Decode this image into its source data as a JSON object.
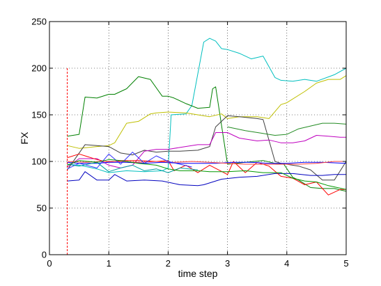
{
  "chart_data": {
    "type": "line",
    "xlabel": "time step",
    "ylabel": "FX",
    "xlim": [
      0,
      5
    ],
    "ylim": [
      0,
      250
    ],
    "xticks": [
      0,
      1,
      2,
      3,
      4,
      5
    ],
    "yticks": [
      0,
      50,
      100,
      150,
      200,
      250
    ],
    "grid": true,
    "marker_line": {
      "x": 0.3,
      "y_range": [
        0,
        200
      ],
      "color": "#ff0000"
    },
    "series": [
      {
        "color": "#00bfbf",
        "x": [
          0.3,
          0.5,
          0.8,
          1.0,
          1.3,
          1.6,
          1.9,
          2.0,
          2.05,
          2.3,
          2.4,
          2.6,
          2.7,
          2.8,
          2.9,
          3.0,
          3.2,
          3.4,
          3.6,
          3.8,
          3.9,
          4.1,
          4.3,
          4.5,
          4.8,
          5.0
        ],
        "y": [
          97,
          96,
          92,
          88,
          90,
          89,
          90,
          93,
          150,
          151,
          160,
          228,
          232,
          229,
          221,
          220,
          216,
          210,
          213,
          190,
          187,
          186,
          188,
          186,
          193,
          200
        ]
      },
      {
        "color": "#008000",
        "x": [
          0.3,
          0.5,
          0.6,
          0.8,
          1.0,
          1.1,
          1.3,
          1.5,
          1.7,
          1.9,
          2.0,
          2.1,
          2.3,
          2.5,
          2.7,
          2.75,
          2.8,
          3.0,
          3.3,
          3.6,
          3.8,
          3.95,
          4.1,
          4.2,
          4.4,
          4.6,
          4.8,
          5.0
        ],
        "y": [
          127,
          129,
          169,
          168,
          172,
          172,
          178,
          191,
          188,
          170,
          170,
          168,
          162,
          157,
          158,
          178,
          180,
          97,
          99,
          101,
          98,
          97,
          83,
          80,
          72,
          71,
          71,
          68
        ]
      },
      {
        "color": "#bfbf00",
        "x": [
          0.3,
          0.5,
          0.8,
          1.0,
          1.1,
          1.3,
          1.5,
          1.7,
          1.8,
          2.0,
          2.3,
          2.5,
          2.7,
          2.9,
          3.0,
          3.2,
          3.5,
          3.7,
          3.9,
          4.0,
          4.3,
          4.5,
          4.7,
          4.9,
          5.0
        ],
        "y": [
          117,
          114,
          116,
          117,
          120,
          141,
          143,
          151,
          152,
          153,
          152,
          150,
          148,
          151,
          146,
          148,
          148,
          146,
          161,
          163,
          175,
          184,
          188,
          188,
          192
        ]
      },
      {
        "color": "#404040",
        "x": [
          0.3,
          0.6,
          0.8,
          1.0,
          1.2,
          1.4,
          1.6,
          1.8,
          2.0,
          2.2,
          2.5,
          2.7,
          2.8,
          3.0,
          3.2,
          3.5,
          3.6,
          3.8,
          3.9,
          4.2,
          4.4,
          4.6,
          4.8,
          5.0
        ],
        "y": [
          91,
          118,
          117,
          116,
          109,
          107,
          112,
          110,
          111,
          111,
          112,
          116,
          137,
          149,
          148,
          146,
          145,
          100,
          98,
          95,
          91,
          80,
          80,
          100
        ]
      },
      {
        "color": "#228b22",
        "x": [
          3.0,
          3.3,
          3.6,
          3.8,
          4.0,
          4.2,
          4.4,
          4.6,
          4.8,
          5.0
        ],
        "y": [
          137,
          133,
          130,
          128,
          129,
          135,
          138,
          141,
          141,
          140
        ]
      },
      {
        "color": "#bf00bf",
        "x": [
          0.3,
          0.5,
          0.8,
          1.0,
          1.2,
          1.4,
          1.6,
          1.8,
          2.0,
          2.2,
          2.5,
          2.7,
          2.8,
          3.0,
          3.2,
          3.5,
          3.7,
          3.9,
          4.1,
          4.3,
          4.5,
          4.7,
          4.9,
          5.0
        ],
        "y": [
          94,
          103,
          103,
          96,
          93,
          96,
          111,
          113,
          113,
          115,
          118,
          118,
          131,
          131,
          125,
          122,
          123,
          120,
          120,
          122,
          128,
          127,
          126,
          126
        ]
      },
      {
        "color": "#0000bf",
        "x": [
          0.3,
          0.5,
          0.6,
          0.8,
          1.0,
          1.1,
          1.3,
          1.6,
          1.9,
          2.2,
          2.5,
          2.6,
          2.9,
          3.2,
          3.5,
          3.8,
          4.1,
          4.4,
          4.6,
          4.8,
          5.0
        ],
        "y": [
          79,
          80,
          89,
          80,
          80,
          86,
          79,
          80,
          79,
          75,
          74,
          75,
          81,
          83,
          84,
          87,
          87,
          85,
          85,
          86,
          86
        ]
      },
      {
        "color": "#ff0000",
        "x": [
          0.3,
          0.5,
          0.8,
          1.0,
          1.2,
          1.5,
          1.8,
          2.0,
          2.1,
          2.3,
          2.5,
          2.7,
          3.0,
          3.1,
          3.3,
          3.5,
          3.7,
          3.9,
          4.1,
          4.3,
          4.5,
          4.7,
          4.9,
          5.0
        ],
        "y": [
          104,
          108,
          102,
          99,
          101,
          101,
          100,
          101,
          90,
          96,
          88,
          96,
          86,
          100,
          88,
          99,
          95,
          84,
          82,
          75,
          78,
          64,
          70,
          70
        ]
      },
      {
        "color": "#0000ff",
        "x": [
          0.3,
          0.5,
          0.8,
          1.0,
          1.3,
          1.6,
          1.9,
          2.2,
          2.5,
          2.8,
          3.1,
          3.4,
          3.7,
          4.0,
          4.3,
          4.6,
          5.0
        ],
        "y": [
          99,
          98,
          98,
          99,
          99,
          98,
          99,
          98,
          98,
          98,
          99,
          99,
          98,
          98,
          99,
          99,
          98
        ]
      },
      {
        "color": "#ff4040",
        "x": [
          0.3,
          0.6,
          0.9,
          1.2,
          1.5,
          1.8,
          2.1,
          2.4,
          2.7,
          3.0,
          3.3,
          3.6,
          3.9,
          4.2,
          4.5,
          4.8,
          5.0
        ],
        "y": [
          100,
          99,
          100,
          100,
          99,
          100,
          99,
          100,
          99,
          98,
          97,
          97,
          97,
          97,
          98,
          100,
          100
        ]
      },
      {
        "color": "#3333ff",
        "x": [
          0.3,
          0.5,
          0.8,
          1.0,
          1.2,
          1.4,
          1.6,
          1.8,
          2.0,
          2.2,
          2.4
        ],
        "y": [
          92,
          98,
          93,
          108,
          97,
          110,
          98,
          106,
          100,
          97,
          94
        ]
      },
      {
        "color": "#00a0a0",
        "x": [
          0.3,
          0.5,
          0.8,
          1.0,
          1.2,
          1.4,
          1.6,
          1.8,
          2.0,
          2.2,
          2.5
        ],
        "y": [
          97,
          95,
          99,
          89,
          93,
          96,
          90,
          92,
          88,
          93,
          91
        ]
      },
      {
        "color": "#009900",
        "x": [
          0.3,
          0.5,
          0.8,
          1.0,
          1.2,
          1.5,
          1.8,
          2.0,
          2.2,
          2.5,
          2.7,
          3.0,
          3.3,
          3.6,
          3.9,
          4.1,
          4.3,
          4.5,
          4.7,
          5.0
        ],
        "y": [
          96,
          101,
          99,
          102,
          101,
          98,
          96,
          92,
          90,
          90,
          89,
          89,
          90,
          88,
          88,
          82,
          79,
          78,
          74,
          70
        ]
      }
    ]
  }
}
